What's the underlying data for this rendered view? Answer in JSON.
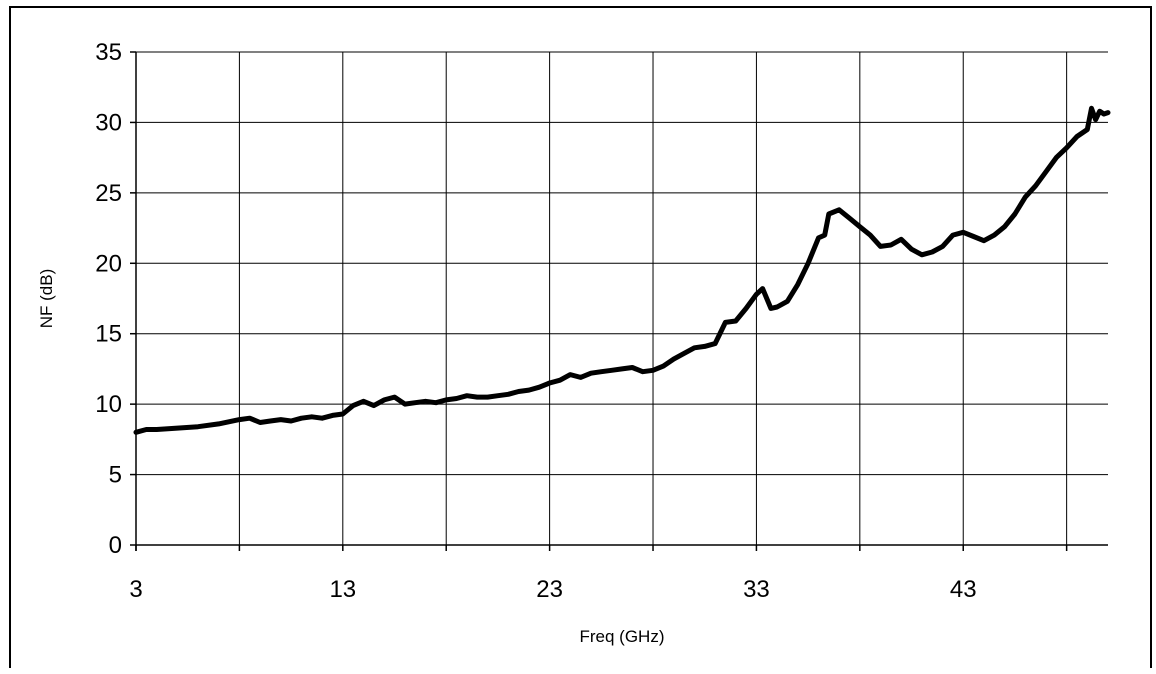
{
  "chart_data": {
    "type": "line",
    "xlabel": "Freq (GHz)",
    "ylabel": "NF (dB)",
    "xlim": [
      3,
      50
    ],
    "ylim": [
      0,
      35
    ],
    "xticks": [
      3,
      13,
      23,
      33,
      43
    ],
    "xgrid": [
      3,
      8,
      13,
      18,
      23,
      28,
      33,
      38,
      43,
      48
    ],
    "yticks": [
      0,
      5,
      10,
      15,
      20,
      25,
      30,
      35
    ],
    "grid": true,
    "line_color": "#000000",
    "series": [
      {
        "x": [
          3.0,
          3.5,
          4.0,
          5.0,
          6.0,
          7.0,
          8.0,
          8.5,
          9.0,
          9.5,
          10.0,
          10.5,
          11.0,
          11.5,
          12.0,
          12.5,
          13.0,
          13.5,
          14.0,
          14.5,
          15.0,
          15.5,
          16.0,
          16.5,
          17.0,
          17.5,
          18.0,
          18.5,
          19.0,
          19.5,
          20.0,
          20.5,
          21.0,
          21.5,
          22.0,
          22.5,
          23.0,
          23.5,
          24.0,
          24.5,
          25.0,
          25.5,
          26.0,
          26.5,
          27.0,
          27.5,
          28.0,
          28.5,
          29.0,
          29.5,
          30.0,
          30.5,
          31.0,
          31.5,
          32.0,
          32.5,
          33.0,
          33.3,
          33.7,
          34.0,
          34.5,
          35.0,
          35.5,
          36.0,
          36.3,
          36.5,
          37.0,
          37.5,
          38.0,
          38.5,
          39.0,
          39.5,
          40.0,
          40.5,
          41.0,
          41.5,
          42.0,
          42.5,
          43.0,
          43.5,
          44.0,
          44.5,
          45.0,
          45.5,
          46.0,
          46.5,
          47.0,
          47.5,
          48.0,
          48.5,
          49.0,
          49.2,
          49.4,
          49.6,
          49.8,
          50.0
        ],
        "y": [
          8.0,
          8.2,
          8.2,
          8.3,
          8.4,
          8.6,
          8.9,
          9.0,
          8.7,
          8.8,
          8.9,
          8.8,
          9.0,
          9.1,
          9.0,
          9.2,
          9.3,
          9.9,
          10.2,
          9.9,
          10.3,
          10.5,
          10.0,
          10.1,
          10.2,
          10.1,
          10.3,
          10.4,
          10.6,
          10.5,
          10.5,
          10.6,
          10.7,
          10.9,
          11.0,
          11.2,
          11.5,
          11.7,
          12.1,
          11.9,
          12.2,
          12.3,
          12.4,
          12.5,
          12.6,
          12.3,
          12.4,
          12.7,
          13.2,
          13.6,
          14.0,
          14.1,
          14.3,
          15.8,
          15.9,
          16.8,
          17.8,
          18.2,
          16.8,
          16.9,
          17.3,
          18.5,
          20.0,
          21.8,
          22.0,
          23.5,
          23.8,
          23.2,
          22.6,
          22.0,
          21.2,
          21.3,
          21.7,
          21.0,
          20.6,
          20.8,
          21.2,
          22.0,
          22.2,
          21.9,
          21.6,
          22.0,
          22.6,
          23.5,
          24.7,
          25.5,
          26.5,
          27.5,
          28.2,
          29.0,
          29.5,
          31.0,
          30.2,
          30.8,
          30.6,
          30.7
        ]
      }
    ]
  }
}
